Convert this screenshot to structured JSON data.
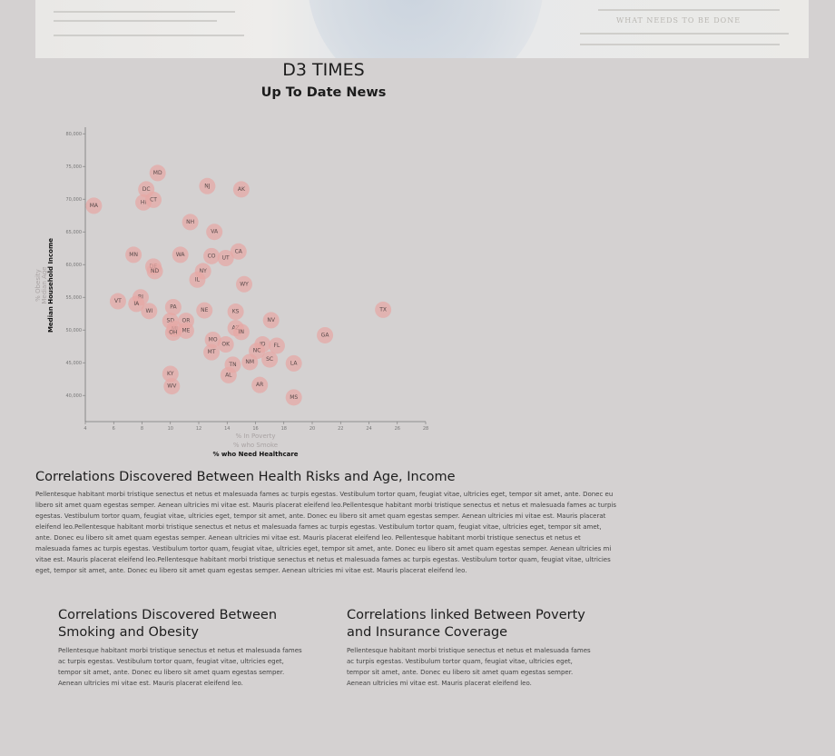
{
  "header": {
    "title": "D3 TIMES",
    "subtitle": "Up To Date News",
    "banner_headline": "WHAT NEEDS TO BE DONE"
  },
  "chart_data": {
    "type": "scatter",
    "x_axis": {
      "range": [
        4,
        28
      ],
      "ticks": [
        "4",
        "6",
        "8",
        "10",
        "12",
        "14",
        "16",
        "18",
        "20",
        "22",
        "24",
        "26",
        "28"
      ],
      "labels": [
        "% In Poverty",
        "% who Smoke",
        "% who Need Healthcare"
      ],
      "active_label": "% who Need Healthcare"
    },
    "y_axis": {
      "range": [
        36000,
        81000
      ],
      "ticks": [
        "40,000",
        "45,000",
        "50,000",
        "55,000",
        "60,000",
        "65,000",
        "70,000",
        "75,000",
        "80,000"
      ],
      "labels": [
        "% Obesity",
        "Median Age",
        "Median Household Income"
      ],
      "active_label": "Median Household Income"
    },
    "points": [
      {
        "abbr": "MA",
        "x": 4.6,
        "y": 69000
      },
      {
        "abbr": "MD",
        "x": 9.1,
        "y": 74000
      },
      {
        "abbr": "DC",
        "x": 8.3,
        "y": 71500
      },
      {
        "abbr": "HI",
        "x": 8.1,
        "y": 69500
      },
      {
        "abbr": "CT",
        "x": 8.8,
        "y": 69900
      },
      {
        "abbr": "NJ",
        "x": 12.6,
        "y": 72000
      },
      {
        "abbr": "AK",
        "x": 15.0,
        "y": 71500
      },
      {
        "abbr": "NH",
        "x": 11.4,
        "y": 66500
      },
      {
        "abbr": "VA",
        "x": 13.1,
        "y": 65000
      },
      {
        "abbr": "MN",
        "x": 7.4,
        "y": 61500
      },
      {
        "abbr": "WA",
        "x": 10.7,
        "y": 61500
      },
      {
        "abbr": "CO",
        "x": 12.9,
        "y": 61300
      },
      {
        "abbr": "UT",
        "x": 13.9,
        "y": 61000
      },
      {
        "abbr": "CA",
        "x": 14.8,
        "y": 62000
      },
      {
        "abbr": "DE",
        "x": 8.8,
        "y": 59700
      },
      {
        "abbr": "ND",
        "x": 8.9,
        "y": 59000
      },
      {
        "abbr": "NY",
        "x": 12.3,
        "y": 59000
      },
      {
        "abbr": "IL",
        "x": 11.9,
        "y": 57700
      },
      {
        "abbr": "WY",
        "x": 15.2,
        "y": 57000
      },
      {
        "abbr": "RI",
        "x": 7.9,
        "y": 55000
      },
      {
        "abbr": "VT",
        "x": 6.3,
        "y": 54400
      },
      {
        "abbr": "IA",
        "x": 7.6,
        "y": 54000
      },
      {
        "abbr": "WI",
        "x": 8.5,
        "y": 52900
      },
      {
        "abbr": "PA",
        "x": 10.2,
        "y": 53500
      },
      {
        "abbr": "NE",
        "x": 12.4,
        "y": 53000
      },
      {
        "abbr": "KS",
        "x": 14.6,
        "y": 52800
      },
      {
        "abbr": "NV",
        "x": 17.1,
        "y": 51500
      },
      {
        "abbr": "TX",
        "x": 25.0,
        "y": 53100
      },
      {
        "abbr": "SD",
        "x": 10.0,
        "y": 51400
      },
      {
        "abbr": "OR",
        "x": 11.1,
        "y": 51400
      },
      {
        "abbr": "MI",
        "x": 10.3,
        "y": 50200
      },
      {
        "abbr": "OH",
        "x": 10.2,
        "y": 49600
      },
      {
        "abbr": "ME",
        "x": 11.1,
        "y": 49900
      },
      {
        "abbr": "AZ",
        "x": 14.6,
        "y": 50300
      },
      {
        "abbr": "IN",
        "x": 15.0,
        "y": 49700
      },
      {
        "abbr": "GA",
        "x": 20.9,
        "y": 49200
      },
      {
        "abbr": "MO",
        "x": 13.0,
        "y": 48500
      },
      {
        "abbr": "OK",
        "x": 13.9,
        "y": 47800
      },
      {
        "abbr": "ID",
        "x": 16.5,
        "y": 47800
      },
      {
        "abbr": "FL",
        "x": 17.5,
        "y": 47600
      },
      {
        "abbr": "MT",
        "x": 12.9,
        "y": 46600
      },
      {
        "abbr": "NC",
        "x": 16.1,
        "y": 46800
      },
      {
        "abbr": "SC",
        "x": 17.0,
        "y": 45500
      },
      {
        "abbr": "NM",
        "x": 15.6,
        "y": 45100
      },
      {
        "abbr": "LA",
        "x": 18.7,
        "y": 44900
      },
      {
        "abbr": "TN",
        "x": 14.4,
        "y": 44700
      },
      {
        "abbr": "KY",
        "x": 10.0,
        "y": 43300
      },
      {
        "abbr": "AL",
        "x": 14.1,
        "y": 43100
      },
      {
        "abbr": "WV",
        "x": 10.1,
        "y": 41400
      },
      {
        "abbr": "AR",
        "x": 16.3,
        "y": 41600
      },
      {
        "abbr": "MS",
        "x": 18.7,
        "y": 39700
      }
    ]
  },
  "sections": {
    "main": {
      "heading": "Correlations Discovered Between Health Risks and Age, Income",
      "body": "Pellentesque habitant morbi tristique senectus et netus et malesuada fames ac turpis egestas. Vestibulum tortor quam, feugiat vitae, ultricies eget, tempor sit amet, ante. Donec eu libero sit amet quam egestas semper. Aenean ultricies mi vitae est. Mauris placerat eleifend leo.Pellentesque habitant morbi tristique senectus et netus et malesuada fames ac turpis egestas. Vestibulum tortor quam, feugiat vitae, ultricies eget, tempor sit amet, ante. Donec eu libero sit amet quam egestas semper. Aenean ultricies mi vitae est. Mauris placerat eleifend leo.Pellentesque habitant morbi tristique senectus et netus et malesuada fames ac turpis egestas. Vestibulum tortor quam, feugiat vitae, ultricies eget, tempor sit amet, ante. Donec eu libero sit amet quam egestas semper. Aenean ultricies mi vitae est. Mauris placerat eleifend leo. Pellentesque habitant morbi tristique senectus et netus et malesuada fames ac turpis egestas. Vestibulum tortor quam, feugiat vitae, ultricies eget, tempor sit amet, ante. Donec eu libero sit amet quam egestas semper. Aenean ultricies mi vitae est. Mauris placerat eleifend leo.Pellentesque habitant morbi tristique senectus et netus et malesuada fames ac turpis egestas. Vestibulum tortor quam, feugiat vitae, ultricies eget, tempor sit amet, ante. Donec eu libero sit amet quam egestas semper. Aenean ultricies mi vitae est. Mauris placerat eleifend leo."
    },
    "left": {
      "heading": "Correlations Discovered Between Smoking and Obesity",
      "body": "Pellentesque habitant morbi tristique senectus et netus et malesuada fames ac turpis egestas. Vestibulum tortor quam, feugiat vitae, ultricies eget, tempor sit amet, ante. Donec eu libero sit amet quam egestas semper. Aenean ultricies mi vitae est. Mauris placerat eleifend leo."
    },
    "right": {
      "heading": "Correlations linked Between Poverty and Insurance Coverage",
      "body": "Pellentesque habitant morbi tristique senectus et netus et malesuada fames ac turpis egestas. Vestibulum tortor quam, feugiat vitae, ultricies eget, tempor sit amet, ante. Donec eu libero sit amet quam egestas semper. Aenean ultricies mi vitae est. Mauris placerat eleifend leo."
    }
  }
}
